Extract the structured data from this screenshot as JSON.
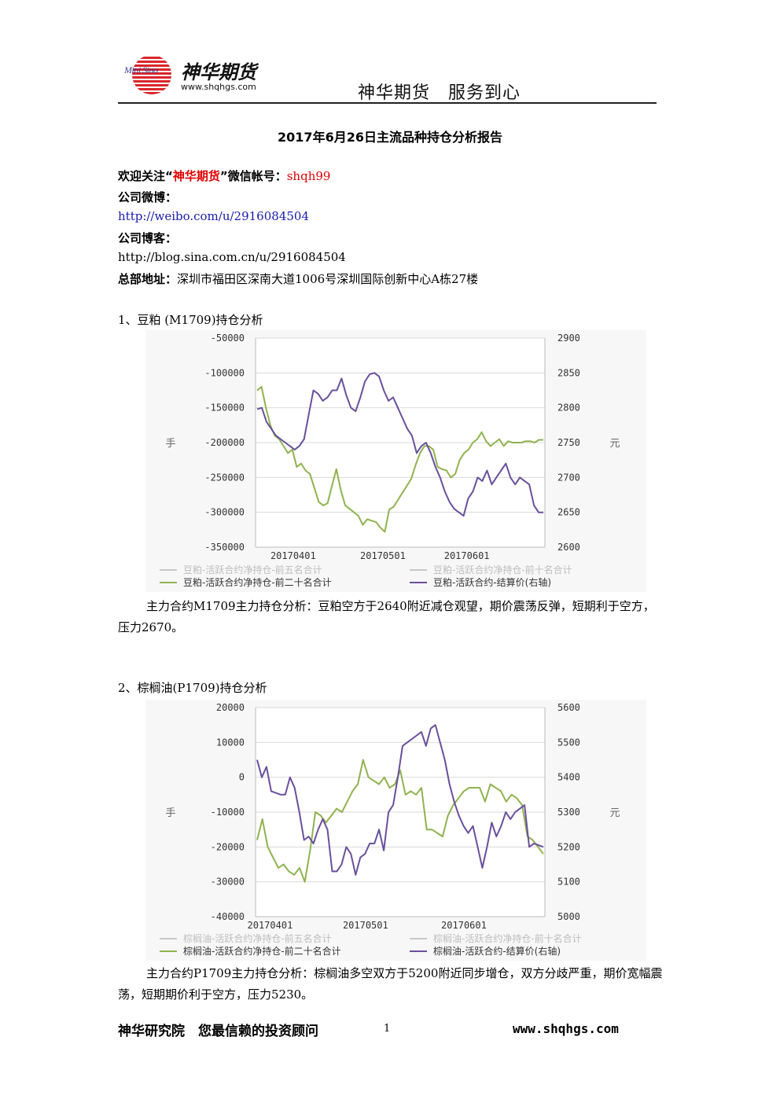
{
  "header": {
    "logo_mini": "Mini Sino",
    "logo_name": "神华期货",
    "logo_url": "www.shqhgs.com",
    "slogan": "神华期货　服务到心"
  },
  "title": "2017年6月26日主流品种持仓分析报告",
  "intro": {
    "welcome_prefix": "欢迎关注“",
    "welcome_brand": "神华期货",
    "welcome_mid": "”微信帐号：",
    "wechat": "shqh99",
    "weibo_label": "公司微博：",
    "weibo_url": "http://weibo.com/u/2916084504",
    "blog_label": "公司博客：",
    "blog_url": "http://blog.sina.com.cn/u/2916084504",
    "address_label": "总部地址：",
    "address": "深圳市福田区深南大道1006号深圳国际创新中心A栋27楼"
  },
  "sections": [
    {
      "heading": "1、豆粕 (M1709)持仓分析",
      "analysis": "主力合约M1709主力持仓分析：豆粕空方于2640附近减仓观望，期价震荡反弹，短期利于空方，压力2670。"
    },
    {
      "heading": "2、棕榈油(P1709)持仓分析",
      "analysis": "主力合约P1709主力持仓分析：棕榈油多空双方于5200附近同步增仓，双方分歧严重，期价宽幅震荡，短期期价利于空方，压力5230。"
    }
  ],
  "chart_data": [
    {
      "type": "line",
      "ylabel": "手",
      "y2label": "元",
      "ylim": [
        -350000,
        -50000
      ],
      "y2lim": [
        2600,
        2900
      ],
      "yticks": [
        -50000,
        -100000,
        -150000,
        -200000,
        -250000,
        -300000,
        -350000
      ],
      "y2ticks": [
        2900,
        2850,
        2800,
        2750,
        2700,
        2650,
        2600
      ],
      "xticks": [
        "20170401",
        "20170501",
        "20170601"
      ],
      "xtick_pos": [
        0.13,
        0.44,
        0.73
      ],
      "grid": true,
      "colors": {
        "green": "#8fb34f",
        "purple": "#6a4f9c",
        "gray": "#c8c8c8"
      },
      "legend": [
        {
          "name": "豆粕-活跃合约净持仓-前五名合计",
          "color": "#c8c8c8"
        },
        {
          "name": "豆粕-活跃合约净持仓-前十名合计",
          "color": "#c8c8c8"
        },
        {
          "name": "豆粕-活跃合约净持仓-前二十名合计",
          "color": "#8fb34f"
        },
        {
          "name": "豆粕-活跃合约-结算价(右轴)",
          "color": "#6a4f9c"
        }
      ],
      "series": [
        {
          "name": "豆粕-活跃合约净持仓-前二十名合计",
          "axis": "left",
          "values": [
            -125000,
            -120000,
            -150000,
            -175000,
            -190000,
            -195000,
            -205000,
            -215000,
            -210000,
            -235000,
            -230000,
            -240000,
            -245000,
            -265000,
            -285000,
            -290000,
            -287000,
            -262000,
            -238000,
            -268000,
            -290000,
            -295000,
            -300000,
            -305000,
            -318000,
            -310000,
            -312000,
            -314000,
            -322000,
            -328000,
            -296000,
            -292000,
            -282000,
            -272000,
            -262000,
            -252000,
            -232000,
            -215000,
            -205000,
            -205000,
            -210000,
            -235000,
            -238000,
            -240000,
            -250000,
            -245000,
            -225000,
            -215000,
            -210000,
            -200000,
            -195000,
            -185000,
            -198000,
            -205000,
            -200000,
            -195000,
            -205000,
            -198000,
            -200000,
            -200000,
            -200000,
            -198000,
            -198000,
            -200000,
            -196000,
            -196000
          ]
        },
        {
          "name": "豆粕-活跃合约-结算价(右轴)",
          "axis": "right",
          "values": [
            2798,
            2800,
            2780,
            2770,
            2760,
            2755,
            2750,
            2745,
            2740,
            2745,
            2755,
            2790,
            2825,
            2820,
            2810,
            2815,
            2825,
            2825,
            2842,
            2818,
            2800,
            2795,
            2815,
            2838,
            2848,
            2850,
            2845,
            2825,
            2810,
            2815,
            2800,
            2785,
            2770,
            2760,
            2735,
            2745,
            2750,
            2735,
            2715,
            2700,
            2680,
            2665,
            2655,
            2650,
            2645,
            2670,
            2680,
            2700,
            2695,
            2710,
            2690,
            2700,
            2710,
            2720,
            2700,
            2690,
            2700,
            2695,
            2690,
            2660,
            2650,
            2650
          ]
        }
      ]
    },
    {
      "type": "line",
      "ylabel": "手",
      "y2label": "元",
      "ylim": [
        -40000,
        20000
      ],
      "y2lim": [
        5000,
        5600
      ],
      "yticks": [
        20000,
        10000,
        0,
        -10000,
        -20000,
        -30000,
        -40000
      ],
      "y2ticks": [
        5600,
        5500,
        5400,
        5300,
        5200,
        5100,
        5000
      ],
      "xticks": [
        "20170401",
        "20170501",
        "20170601"
      ],
      "xtick_pos": [
        0.05,
        0.38,
        0.72
      ],
      "grid": true,
      "colors": {
        "green": "#8fb34f",
        "purple": "#6a4f9c",
        "gray": "#c8c8c8"
      },
      "legend": [
        {
          "name": "棕榈油-活跃合约净持仓-前五名合计",
          "color": "#c8c8c8"
        },
        {
          "name": "棕榈油-活跃合约净持仓-前十名合计",
          "color": "#c8c8c8"
        },
        {
          "name": "棕榈油-活跃合约净持仓-前二十名合计",
          "color": "#8fb34f"
        },
        {
          "name": "棕榈油-活跃合约-结算价(右轴)",
          "color": "#6a4f9c"
        }
      ],
      "series": [
        {
          "name": "棕榈油-活跃合约净持仓-前二十名合计",
          "axis": "left",
          "values": [
            -18000,
            -12000,
            -20000,
            -23000,
            -26000,
            -25000,
            -27000,
            -28000,
            -26000,
            -30000,
            -21000,
            -10000,
            -11000,
            -13000,
            -11000,
            -9000,
            -10000,
            -7000,
            -4000,
            -2000,
            5000,
            0,
            -1000,
            -2000,
            0,
            -3000,
            -2000,
            2000,
            -5000,
            -4000,
            -5000,
            -3000,
            -15000,
            -15000,
            -16000,
            -17000,
            -11000,
            -8000,
            -6000,
            -4000,
            -3000,
            -3000,
            -3000,
            -7000,
            -2000,
            -3000,
            -4000,
            -7000,
            -5000,
            -6000,
            -8000,
            -17000,
            -18000,
            -20000,
            -22000
          ]
        },
        {
          "name": "棕榈油-活跃合约-结算价(右轴)",
          "axis": "right",
          "values": [
            5450,
            5400,
            5430,
            5360,
            5355,
            5350,
            5350,
            5400,
            5370,
            5300,
            5220,
            5230,
            5210,
            5250,
            5280,
            5250,
            5130,
            5130,
            5150,
            5200,
            5180,
            5120,
            5170,
            5180,
            5210,
            5210,
            5250,
            5190,
            5300,
            5320,
            5400,
            5490,
            5500,
            5510,
            5520,
            5530,
            5490,
            5540,
            5550,
            5500,
            5450,
            5380,
            5330,
            5290,
            5260,
            5240,
            5260,
            5200,
            5140,
            5200,
            5270,
            5230,
            5260,
            5300,
            5280,
            5300,
            5310,
            5320,
            5200,
            5210,
            5205,
            5200
          ]
        }
      ]
    }
  ]
}
